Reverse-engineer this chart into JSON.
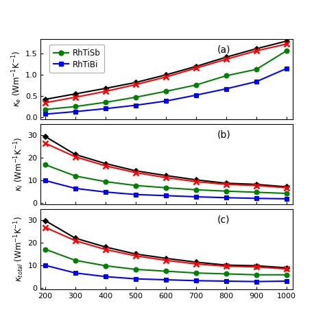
{
  "x": [
    200,
    300,
    400,
    500,
    600,
    700,
    800,
    900,
    1000
  ],
  "panel_a": {
    "label": "(a)",
    "ylabel": "$\\kappa_e$ (Wm$^{-1}$K$^{-1}$)",
    "ylim": [
      -0.05,
      1.85
    ],
    "yticks": [
      0.0,
      0.5,
      1.0,
      1.5
    ],
    "curves": [
      {
        "color": "black",
        "marker": "D",
        "ms": 4.5,
        "lw": 1.5,
        "data": [
          0.42,
          0.55,
          0.68,
          0.82,
          1.0,
          1.2,
          1.42,
          1.62,
          1.8
        ]
      },
      {
        "color": "red",
        "marker": "x",
        "ms": 6,
        "lw": 1.5,
        "data": [
          0.34,
          0.47,
          0.61,
          0.77,
          0.95,
          1.16,
          1.37,
          1.57,
          1.73
        ]
      },
      {
        "color": "green",
        "marker": "o",
        "ms": 5,
        "lw": 1.5,
        "data": [
          0.18,
          0.25,
          0.35,
          0.47,
          0.61,
          0.76,
          0.98,
          1.13,
          1.57
        ]
      },
      {
        "color": "blue",
        "marker": "s",
        "ms": 4.5,
        "lw": 1.5,
        "data": [
          0.07,
          0.13,
          0.2,
          0.28,
          0.38,
          0.52,
          0.67,
          0.84,
          1.15
        ]
      }
    ]
  },
  "panel_b": {
    "label": "(b)",
    "ylabel": "$\\kappa_l$ (Wm$^{-1}$K$^{-1}$)",
    "ylim": [
      -0.5,
      35
    ],
    "yticks": [
      0,
      10,
      20,
      30
    ],
    "curves": [
      {
        "color": "black",
        "marker": "D",
        "ms": 4.5,
        "lw": 1.5,
        "data": [
          29.5,
          21.5,
          17.5,
          14.3,
          12.2,
          10.3,
          8.8,
          8.3,
          7.2
        ]
      },
      {
        "color": "red",
        "marker": "x",
        "ms": 6,
        "lw": 1.5,
        "data": [
          26.5,
          20.5,
          16.5,
          13.5,
          11.3,
          9.5,
          8.3,
          7.8,
          6.8
        ]
      },
      {
        "color": "green",
        "marker": "o",
        "ms": 5,
        "lw": 1.5,
        "data": [
          17.0,
          12.0,
          9.5,
          7.8,
          6.8,
          5.9,
          5.3,
          4.8,
          4.3
        ]
      },
      {
        "color": "blue",
        "marker": "s",
        "ms": 4.5,
        "lw": 1.5,
        "data": [
          10.0,
          6.5,
          4.9,
          3.8,
          3.3,
          2.8,
          2.4,
          2.1,
          1.9
        ]
      }
    ]
  },
  "panel_c": {
    "label": "(c)",
    "ylabel": "$\\kappa_{total}$ (Wm$^{-1}$K$^{-1}$)",
    "ylim": [
      -0.5,
      35
    ],
    "yticks": [
      0,
      10,
      20,
      30
    ],
    "curves": [
      {
        "color": "black",
        "marker": "D",
        "ms": 4.5,
        "lw": 1.5,
        "data": [
          29.9,
          22.1,
          18.2,
          15.1,
          13.2,
          11.5,
          10.2,
          9.9,
          9.0
        ]
      },
      {
        "color": "red",
        "marker": "x",
        "ms": 6,
        "lw": 1.5,
        "data": [
          26.9,
          21.0,
          17.1,
          14.3,
          12.3,
          10.7,
          9.7,
          9.4,
          8.5
        ]
      },
      {
        "color": "green",
        "marker": "o",
        "ms": 5,
        "lw": 1.5,
        "data": [
          17.2,
          12.3,
          9.9,
          8.3,
          7.5,
          6.7,
          6.3,
          5.9,
          5.9
        ]
      },
      {
        "color": "blue",
        "marker": "s",
        "ms": 4.5,
        "lw": 1.5,
        "data": [
          10.1,
          6.7,
          5.1,
          4.1,
          3.7,
          3.3,
          3.1,
          2.9,
          3.1
        ]
      }
    ]
  },
  "xlim": [
    185,
    1020
  ],
  "xticks": [
    200,
    300,
    400,
    500,
    600,
    700,
    800,
    900,
    1000
  ],
  "bg_color": "#ffffff"
}
